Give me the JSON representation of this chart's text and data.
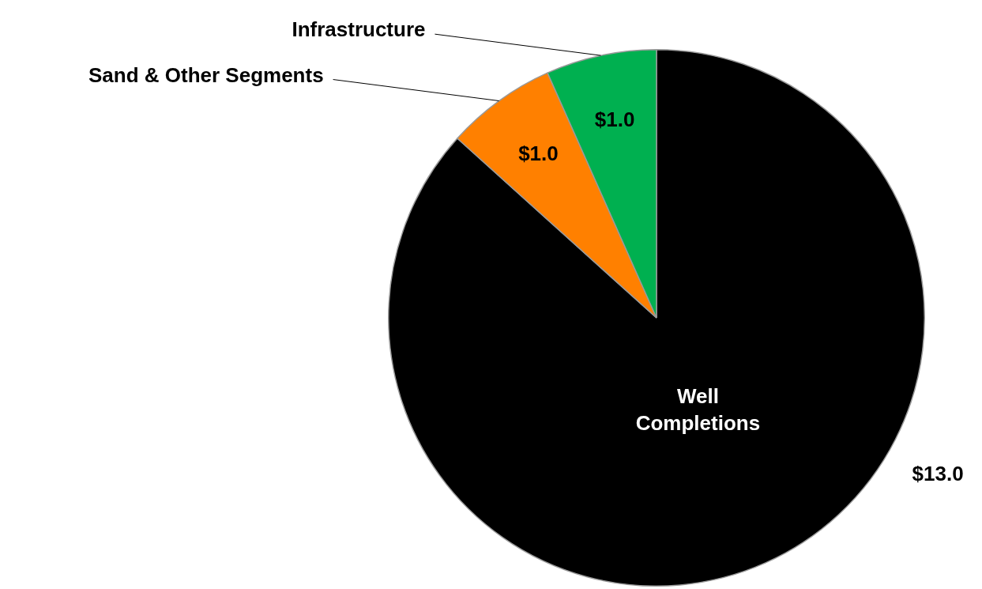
{
  "chart_data": {
    "type": "pie",
    "categories": [
      "Well Completions",
      "Sand & Other Segments",
      "Infrastructure"
    ],
    "values": [
      13.0,
      1.0,
      1.0
    ],
    "colors": [
      "#000000",
      "#ff8000",
      "#00b050"
    ],
    "value_labels": [
      "$13.0",
      "$1.0",
      "$1.0"
    ],
    "legend": false
  }
}
